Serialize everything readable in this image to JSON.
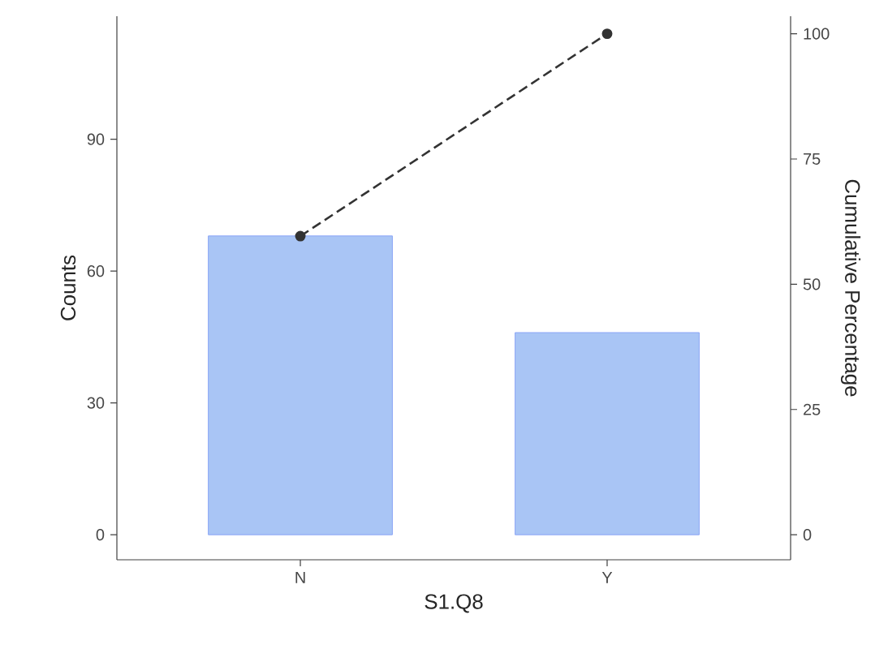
{
  "chart_data": {
    "type": "bar",
    "xlabel": "S1.Q8",
    "ylabel": "Counts",
    "y2label": "Cumulative Percentage",
    "categories": [
      "N",
      "Y"
    ],
    "series": [
      {
        "color": "#a4c2f4",
        "values": [
          68,
          46
        ]
      },
      {
        "type": "line",
        "axis": "y2",
        "color": "#333333",
        "line_style": "dashed",
        "marker": "circle",
        "values": [
          59.6,
          100
        ]
      }
    ],
    "ylim": [
      -5.7,
      118
    ],
    "yticks": [
      0,
      30,
      60,
      90
    ],
    "y2lim": [
      -5.0,
      103.5
    ],
    "y2ticks": [
      0,
      25,
      50,
      75,
      100
    ]
  }
}
